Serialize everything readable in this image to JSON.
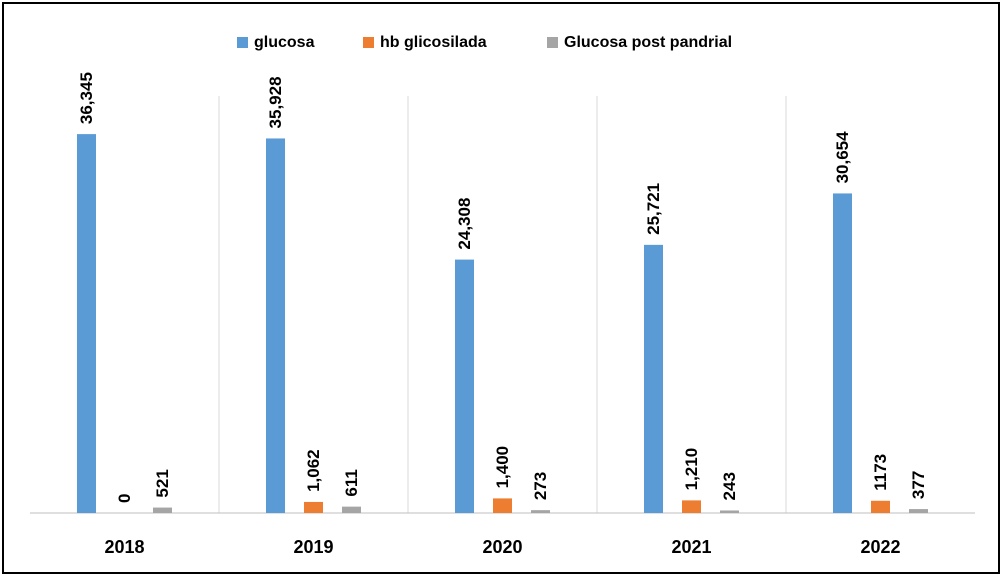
{
  "chart_data": {
    "type": "bar",
    "categories": [
      "2018",
      "2019",
      "2020",
      "2021",
      "2022"
    ],
    "series": [
      {
        "name": "glucosa",
        "color": "#5b9bd5",
        "values": [
          36345,
          35928,
          24308,
          25721,
          30654
        ],
        "value_labels": [
          "36,345",
          "35,928",
          "24,308",
          "25,721",
          "30,654"
        ]
      },
      {
        "name": "hb glicosilada",
        "color": "#ed7d31",
        "values": [
          0,
          1062,
          1400,
          1210,
          1173
        ],
        "value_labels": [
          "0",
          "1,062",
          "1,400",
          "1,210",
          "1173"
        ]
      },
      {
        "name": "Glucosa post pandrial",
        "color": "#a5a5a5",
        "values": [
          521,
          611,
          273,
          243,
          377
        ]
      }
    ],
    "ylim": [
      0,
      40000
    ],
    "legend": "top"
  }
}
